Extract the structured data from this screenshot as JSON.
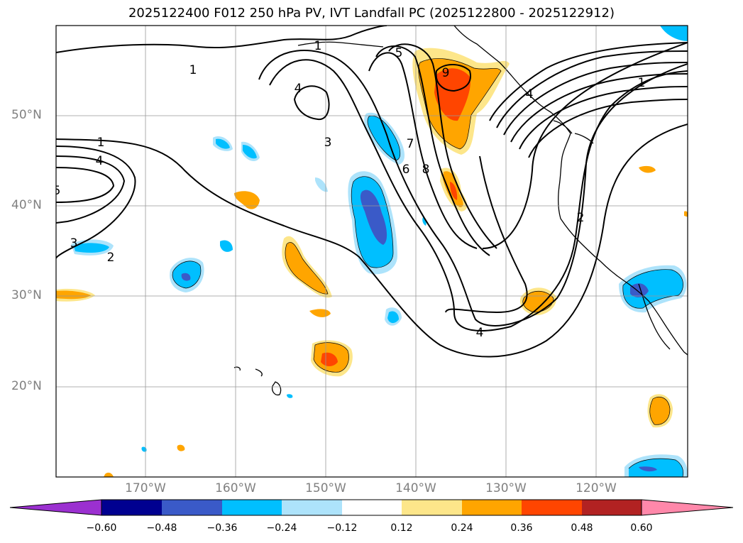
{
  "title": "2025122400 F012 250 hPa PV, IVT Landfall PC (2025122800 - 2025122912)",
  "map": {
    "lat_labels": [
      "50°N",
      "40°N",
      "30°N",
      "20°N"
    ],
    "lon_labels": [
      "170°W",
      "160°W",
      "150°W",
      "140°W",
      "130°W",
      "120°W"
    ],
    "contour_labels": [
      "1",
      "1",
      "1",
      "1",
      "2",
      "2",
      "3",
      "3",
      "4",
      "4",
      "4",
      "4",
      "5",
      "5",
      "6",
      "7",
      "8",
      "9"
    ]
  },
  "colorbar": {
    "tick_labels": [
      "−0.60",
      "−0.48",
      "−0.36",
      "−0.24",
      "−0.12",
      "0.12",
      "0.24",
      "0.36",
      "0.48",
      "0.60"
    ],
    "colors": [
      "#9b30d0",
      "#000090",
      "#3a5ac8",
      "#00bfff",
      "#ade3fb",
      "#ffffff",
      "#fde68a",
      "#ffa500",
      "#ff4500",
      "#b22222",
      "#ff88aa"
    ]
  }
}
